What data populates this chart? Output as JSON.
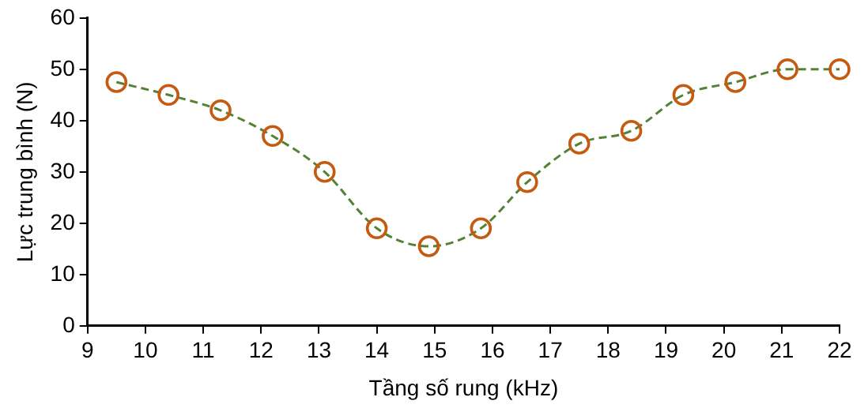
{
  "chart_data": {
    "type": "line",
    "xlabel": "Tầng số rung (kHz)",
    "ylabel": "Lực trung bình (N)",
    "x": [
      9.5,
      10.4,
      11.3,
      12.2,
      13.1,
      14.0,
      14.9,
      15.8,
      16.6,
      17.5,
      18.4,
      19.3,
      20.2,
      21.1,
      22
    ],
    "series": [
      {
        "color": "#548235",
        "colors": [
          "#c55a11",
          "#c55a11",
          "#c55a11",
          "#c55a11",
          "#c55a11",
          "#c55a11",
          "#c55a11",
          "#c55a11",
          "#c55a11",
          "#c55a11",
          "#c55a11",
          "#c55a11",
          "#c55a11",
          "#c55a11",
          "#c55a11"
        ],
        "values": [
          47.5,
          45,
          42,
          37,
          30,
          19,
          15.5,
          19,
          28,
          35.5,
          38,
          45,
          47.5,
          50,
          50
        ]
      }
    ],
    "xlim": [
      9,
      22
    ],
    "xticks": [
      9,
      10,
      11,
      12,
      13,
      14,
      15,
      16,
      17,
      18,
      19,
      20,
      21,
      22
    ],
    "ylim": [
      0,
      60
    ],
    "yticks": [
      0,
      10,
      20,
      30,
      40,
      50,
      60
    ],
    "grid": false,
    "legend": false,
    "marker": "circle",
    "line_style": "dashed"
  }
}
